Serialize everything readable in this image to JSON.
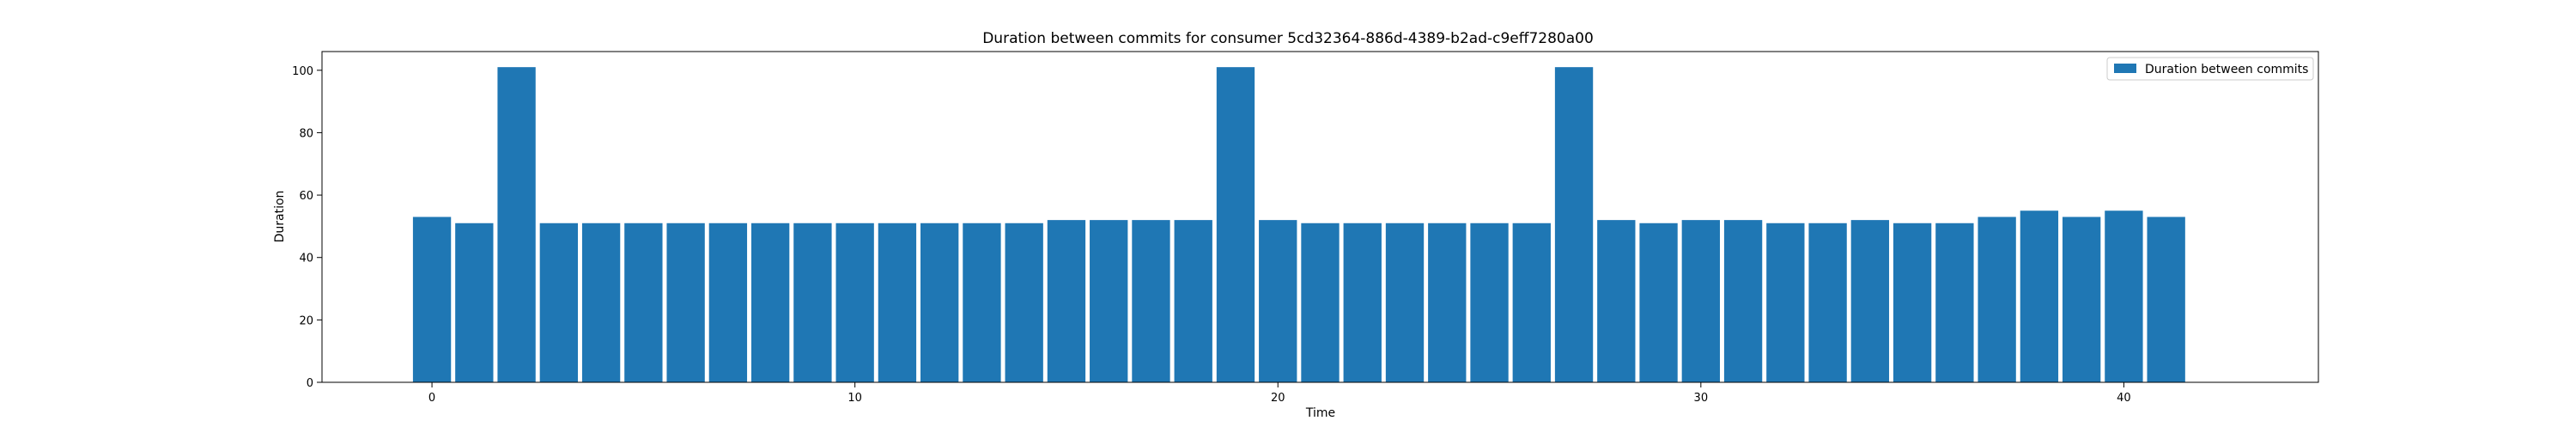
{
  "chart_data": {
    "type": "bar",
    "title": "Duration between commits for consumer 5cd32364-886d-4389-b2ad-c9eff7280a00",
    "xlabel": "Time",
    "ylabel": "Duration",
    "x": [
      0,
      1,
      2,
      3,
      4,
      5,
      6,
      7,
      8,
      9,
      10,
      11,
      12,
      13,
      14,
      15,
      16,
      17,
      18,
      19,
      20,
      21,
      22,
      23,
      24,
      25,
      26,
      27,
      28,
      29,
      30,
      31,
      32,
      33,
      34,
      35,
      36,
      37,
      38,
      39,
      40,
      41
    ],
    "series": [
      {
        "name": "Duration between commits",
        "color": "#1f77b4",
        "values": [
          53,
          51,
          101,
          51,
          51,
          51,
          51,
          51,
          51,
          51,
          51,
          51,
          51,
          51,
          51,
          52,
          52,
          52,
          52,
          101,
          52,
          51,
          51,
          51,
          51,
          51,
          51,
          101,
          52,
          51,
          52,
          52,
          51,
          51,
          52,
          51,
          51,
          53,
          55,
          53,
          55,
          53
        ]
      }
    ],
    "xlim": [
      -2.6,
      44.6
    ],
    "ylim": [
      0,
      106
    ],
    "xticks": [
      0,
      10,
      20,
      30,
      40
    ],
    "yticks": [
      0,
      20,
      40,
      60,
      80,
      100
    ],
    "grid": false,
    "legend_position": "top-right"
  }
}
